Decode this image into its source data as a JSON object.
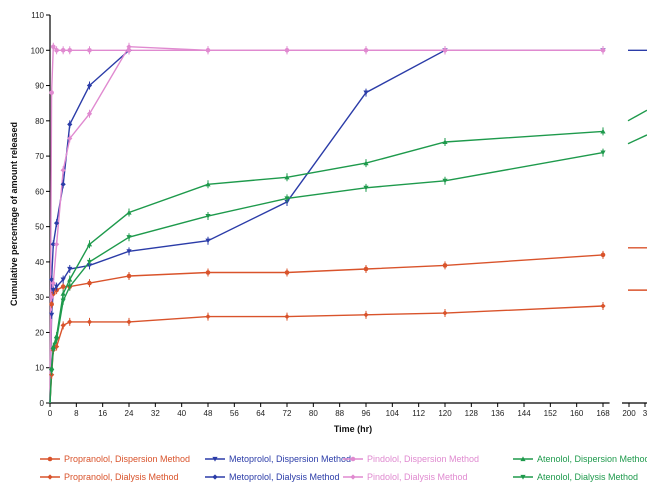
{
  "chart_data": {
    "type": "line",
    "xlabel": "Time (hr)",
    "ylabel": "Cumulative percentage of amount released",
    "ylim": [
      0,
      110
    ],
    "xlim": [
      0,
      170
    ],
    "x_ticks": [
      "0",
      "8",
      "16",
      "24",
      "32",
      "40",
      "48",
      "56",
      "64",
      "72",
      "80",
      "88",
      "96",
      "104",
      "112",
      "120",
      "128",
      "136",
      "144",
      "152",
      "160",
      "168"
    ],
    "x_ticks_broken": [
      "200",
      "3"
    ],
    "y_ticks": [
      "0",
      "10",
      "20",
      "30",
      "40",
      "50",
      "60",
      "70",
      "80",
      "90",
      "100",
      "110"
    ],
    "grid": false,
    "legend_position": "bottom",
    "series": [
      {
        "name": "Propranolol, Dispersion Method",
        "color": "#d9532b",
        "marker": "circle",
        "x": [
          0,
          0.5,
          1,
          2,
          4,
          6,
          12,
          24,
          48,
          72,
          96,
          120,
          168
        ],
        "y": [
          0,
          28,
          31,
          32,
          33,
          33,
          34,
          36,
          37,
          37,
          38,
          39,
          42
        ],
        "tail_y": [
          44
        ]
      },
      {
        "name": "Propranolol, Dialysis Method",
        "color": "#d9532b",
        "marker": "diamond",
        "x": [
          0,
          0.5,
          1,
          2,
          4,
          6,
          12,
          24,
          48,
          72,
          96,
          120,
          168
        ],
        "y": [
          0,
          8,
          15,
          16,
          22,
          23,
          23,
          23,
          24.5,
          24.5,
          25,
          25.5,
          27.5
        ],
        "tail_y": [
          32
        ]
      },
      {
        "name": "Metoprolol, Dispersion Method",
        "color": "#2b3ca8",
        "marker": "down-triangle",
        "x": [
          0,
          0.5,
          1,
          2,
          4,
          6,
          12,
          24,
          48,
          72,
          96,
          120,
          168
        ],
        "y": [
          0,
          25,
          32,
          33,
          35,
          38,
          39,
          43,
          46,
          57,
          88,
          100,
          100
        ],
        "tail_y": [
          100
        ]
      },
      {
        "name": "Metoprolol, Dialysis Method",
        "color": "#2b3ca8",
        "marker": "diamond",
        "x": [
          0,
          0.5,
          1,
          2,
          4,
          6,
          12,
          24
        ],
        "y": [
          0,
          35,
          45,
          51,
          62,
          79,
          90,
          100
        ]
      },
      {
        "name": "Pindolol, Dispersion Method",
        "color": "#e08ad0",
        "marker": "circle",
        "x": [
          0,
          0.5,
          1,
          2,
          4,
          6,
          12,
          24,
          48,
          72,
          96,
          120,
          168
        ],
        "y": [
          0,
          88,
          101,
          100,
          100,
          100,
          100,
          100,
          100,
          100,
          100,
          100,
          100
        ]
      },
      {
        "name": "Pindolol, Dialysis Method",
        "color": "#e08ad0",
        "marker": "diamond",
        "x": [
          0,
          0.5,
          1,
          2,
          4,
          6,
          12,
          24,
          48,
          72,
          96,
          120,
          168
        ],
        "y": [
          0,
          30,
          34,
          45,
          66,
          75,
          82,
          101,
          100,
          100,
          100,
          100,
          100
        ]
      },
      {
        "name": "Atenolol, Dispersion Method",
        "color": "#1e9a4c",
        "marker": "triangle",
        "x": [
          0,
          0.5,
          1,
          2,
          4,
          6,
          12,
          24,
          48,
          72,
          96,
          120,
          168
        ],
        "y": [
          0,
          10,
          16,
          19,
          31,
          35,
          45,
          54,
          62,
          64,
          68,
          74,
          77
        ],
        "tail_y": [
          80,
          83
        ]
      },
      {
        "name": "Atenolol, Dialysis Method",
        "color": "#1e9a4c",
        "marker": "down-triangle",
        "x": [
          0,
          0.5,
          1,
          2,
          4,
          6,
          12,
          24,
          48,
          72,
          96,
          120,
          168
        ],
        "y": [
          0,
          9,
          15,
          18,
          29,
          33,
          40,
          47,
          53,
          58,
          61,
          63,
          71
        ],
        "tail_y": [
          73.5,
          76
        ]
      }
    ]
  }
}
